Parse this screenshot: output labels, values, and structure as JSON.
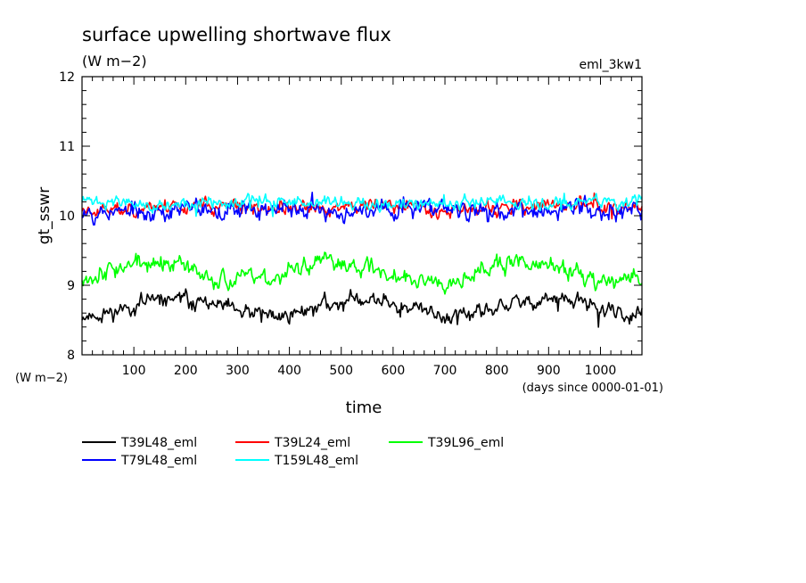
{
  "chart_data": {
    "type": "line",
    "title": "surface upwelling shortwave flux",
    "subtitle": "(W m−2)",
    "run_label": "eml_3kw1",
    "ylabel": "gt_sswr",
    "y_unit_label": "(W m−2)",
    "xlabel": "time",
    "x_unit_label": "(days since 0000-01-01)",
    "xlim": [
      0,
      1080
    ],
    "ylim": [
      8,
      12
    ],
    "x_ticks": [
      100,
      200,
      300,
      400,
      500,
      600,
      700,
      800,
      900,
      1000
    ],
    "y_ticks": [
      8,
      9,
      10,
      11,
      12
    ],
    "grid": false,
    "legend_position": "bottom",
    "series": [
      {
        "name": "T39L48_eml",
        "color": "#000000",
        "mean": 8.68,
        "amplitude": 0.12,
        "noise": 0.11,
        "seed": 11,
        "x": [
          0,
          1080
        ],
        "y_range": [
          8.2,
          9.2
        ]
      },
      {
        "name": "T39L24_eml",
        "color": "#ff0000",
        "mean": 10.12,
        "amplitude": 0.03,
        "noise": 0.1,
        "seed": 23,
        "x": [
          0,
          1080
        ],
        "y_range": [
          9.8,
          10.5
        ]
      },
      {
        "name": "T39L96_eml",
        "color": "#00ff00",
        "mean": 9.2,
        "amplitude": 0.12,
        "noise": 0.13,
        "seed": 37,
        "x": [
          0,
          1080
        ],
        "y_range": [
          8.7,
          9.7
        ]
      },
      {
        "name": "T79L48_eml",
        "color": "#0000ff",
        "mean": 10.08,
        "amplitude": 0.03,
        "noise": 0.13,
        "seed": 53,
        "x": [
          0,
          1080
        ],
        "y_range": [
          9.5,
          10.5
        ]
      },
      {
        "name": "T159L48_eml",
        "color": "#00ffff",
        "mean": 10.18,
        "amplitude": 0.03,
        "noise": 0.09,
        "seed": 71,
        "x": [
          0,
          1080
        ],
        "y_range": [
          9.6,
          10.6
        ]
      }
    ]
  }
}
